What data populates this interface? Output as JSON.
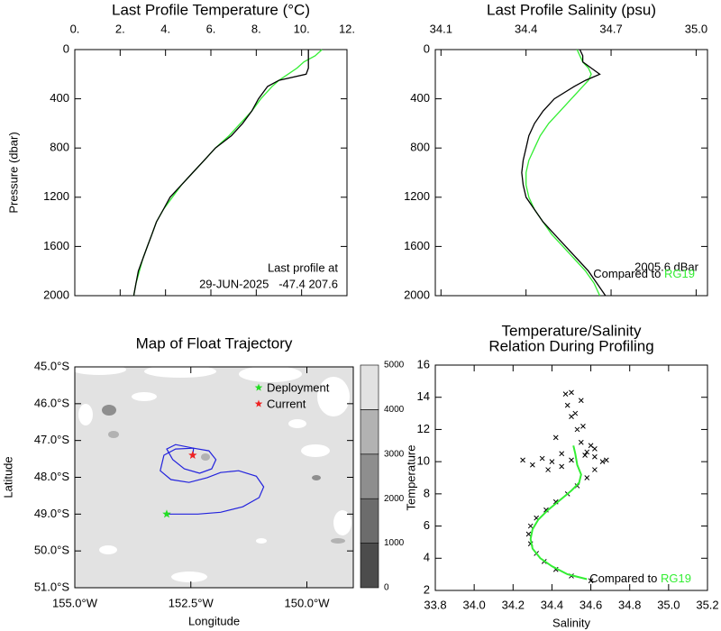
{
  "chart_data": [
    {
      "type": "profile",
      "title": "Last Profile Temperature (°C)",
      "ylabel": "Pressure (dbar)",
      "xlim": [
        0,
        12
      ],
      "xticks": [
        {
          "value": 0,
          "label": "0."
        },
        {
          "value": 2,
          "label": "2."
        },
        {
          "value": 4,
          "label": "4."
        },
        {
          "value": 6,
          "label": "6."
        },
        {
          "value": 8,
          "label": "8."
        },
        {
          "value": 10,
          "label": "10."
        },
        {
          "value": 12,
          "label": "12."
        }
      ],
      "ylim": [
        0,
        2000
      ],
      "yreverse": true,
      "yticks": [
        0,
        400,
        800,
        1200,
        1600,
        2000
      ],
      "y": [
        0,
        50,
        100,
        150,
        200,
        250,
        300,
        400,
        500,
        600,
        700,
        800,
        900,
        1000,
        1100,
        1200,
        1300,
        1400,
        1500,
        1600,
        1700,
        1800,
        1900,
        2000
      ],
      "series": [
        {
          "color": "#33ee33",
          "values": [
            10.9,
            10.6,
            10.1,
            9.8,
            9.4,
            9.0,
            8.7,
            8.2,
            7.8,
            7.3,
            6.8,
            6.2,
            5.7,
            5.2,
            4.7,
            4.3,
            3.9,
            3.6,
            3.4,
            3.2,
            3.0,
            2.85,
            2.7,
            2.6
          ]
        },
        {
          "color": "#000000",
          "values": [
            10.3,
            10.3,
            10.3,
            10.3,
            10.2,
            9.0,
            8.5,
            8.1,
            7.8,
            7.4,
            6.9,
            6.2,
            5.7,
            5.2,
            4.7,
            4.2,
            3.9,
            3.6,
            3.4,
            3.2,
            3.0,
            2.8,
            2.7,
            2.6
          ]
        }
      ],
      "annotation": [
        "Last profile at",
        "29-JUN-2025   -47.4 207.6"
      ]
    },
    {
      "type": "profile",
      "title": "Last Profile Salinity (psu)",
      "xlim": [
        34.08,
        35.04
      ],
      "xticks": [
        34.1,
        34.4,
        34.7,
        {
          "value": 35,
          "label": "35.0"
        }
      ],
      "ylim": [
        0,
        2000
      ],
      "yreverse": true,
      "yticks": [
        0,
        400,
        800,
        1200,
        1600,
        2000
      ],
      "y": [
        0,
        50,
        100,
        150,
        200,
        250,
        300,
        400,
        500,
        600,
        700,
        800,
        900,
        1000,
        1100,
        1200,
        1300,
        1400,
        1500,
        1600,
        1700,
        1800,
        1900,
        2000
      ],
      "series": [
        {
          "color": "#33ee33",
          "values": [
            34.58,
            34.59,
            34.6,
            34.62,
            34.63,
            34.62,
            34.6,
            34.56,
            34.52,
            34.48,
            34.45,
            34.43,
            34.41,
            34.4,
            34.4,
            34.41,
            34.43,
            34.46,
            34.49,
            34.53,
            34.57,
            34.61,
            34.64,
            34.66
          ]
        },
        {
          "color": "#000000",
          "values": [
            34.59,
            34.6,
            34.6,
            34.63,
            34.66,
            34.61,
            34.57,
            34.5,
            34.46,
            34.43,
            34.41,
            34.4,
            34.39,
            34.385,
            34.39,
            34.4,
            34.43,
            34.46,
            34.5,
            34.54,
            34.58,
            34.62,
            34.65,
            34.68
          ]
        }
      ],
      "annotation": [
        "2005.6 dBar"
      ],
      "compare": "Compared to",
      "reference": "RG19",
      "reference_color": "#33ee33"
    },
    {
      "type": "map",
      "title": "Map of Float Trajectory",
      "xlabel": "Longitude",
      "ylabel": "Latitude",
      "xlim": [
        -155,
        -149
      ],
      "xticks": [
        {
          "value": -155,
          "label": "155.0°W"
        },
        {
          "value": -152.5,
          "label": "152.5°W"
        },
        {
          "value": -150,
          "label": "150.0°W"
        }
      ],
      "ylim": [
        -51,
        -45
      ],
      "yticks": [
        {
          "value": -45,
          "label": "45.0°S"
        },
        {
          "value": -46,
          "label": "46.0°S"
        },
        {
          "value": -47,
          "label": "47.0°S"
        },
        {
          "value": -48,
          "label": "48.0°S"
        },
        {
          "value": -49,
          "label": "49.0°S"
        },
        {
          "value": -50,
          "label": "50.0°S"
        },
        {
          "value": -51,
          "label": "51.0°S"
        }
      ],
      "track": {
        "color": "#2222dd",
        "lon": [
          -153.02,
          -152.35,
          -151.86,
          -151.38,
          -151.03,
          -150.93,
          -151.09,
          -151.47,
          -151.86,
          -152.15,
          -152.54,
          -152.93,
          -153.16,
          -153.08,
          -152.83,
          -152.44,
          -152.11,
          -151.96,
          -152.05,
          -152.31,
          -152.64,
          -152.89,
          -153.02,
          -152.83,
          -152.44,
          -152.46
        ],
        "lat": [
          -49.0,
          -49.0,
          -48.95,
          -48.8,
          -48.55,
          -48.26,
          -47.97,
          -47.82,
          -47.87,
          -48.01,
          -48.14,
          -48.06,
          -47.82,
          -47.4,
          -47.23,
          -47.21,
          -47.28,
          -47.52,
          -47.77,
          -47.89,
          -47.77,
          -47.52,
          -47.23,
          -47.11,
          -47.21,
          -47.4
        ]
      },
      "markers": [
        {
          "name": "Deployment",
          "color": "#22dd22",
          "lon": -153.02,
          "lat": -49.0
        },
        {
          "name": "Current",
          "color": "#ee2222",
          "lon": -152.46,
          "lat": -47.4
        }
      ],
      "colorbar": {
        "levels": [
          0,
          1000,
          2000,
          3000,
          4000,
          5000
        ],
        "colors": [
          "#4c4c4c",
          "#6c6c6c",
          "#8e8e8e",
          "#b2b2b2",
          "#e2e2e2"
        ]
      }
    },
    {
      "type": "scatter",
      "title": [
        "Temperature/Salinity",
        "Relation During Profiling"
      ],
      "xlabel": "Salinity",
      "ylabel": "Temperature",
      "xlim": [
        33.8,
        35.2
      ],
      "xticks": [
        33.8,
        {
          "value": 34,
          "label": "34.0"
        },
        34.2,
        34.4,
        34.6,
        34.8,
        {
          "value": 35,
          "label": "35.0"
        },
        35.2
      ],
      "ylim": [
        2,
        16
      ],
      "yticks": [
        2,
        4,
        6,
        8,
        10,
        12,
        14,
        16
      ],
      "series": [
        {
          "color": "#000000",
          "marker": "x",
          "x": [
            34.6,
            34.5,
            34.42,
            34.36,
            34.32,
            34.29,
            34.28,
            34.29,
            34.32,
            34.37,
            34.42,
            34.48,
            34.53,
            34.58,
            34.62,
            34.66,
            34.62,
            34.58,
            34.55,
            34.53,
            34.5,
            34.48,
            34.47,
            34.52,
            34.56,
            34.6,
            34.45,
            34.4,
            34.35,
            34.3,
            34.25,
            34.5,
            34.55,
            34.42,
            34.38,
            34.62,
            34.57,
            34.68,
            34.5,
            34.45
          ],
          "values": [
            2.6,
            2.9,
            3.3,
            3.8,
            4.3,
            4.9,
            5.5,
            6.0,
            6.5,
            7.0,
            7.5,
            8.0,
            8.5,
            9.0,
            9.5,
            10.0,
            10.3,
            10.6,
            11.2,
            12.0,
            12.8,
            13.5,
            14.2,
            13.0,
            12.2,
            11.0,
            10.5,
            10.0,
            10.2,
            9.8,
            10.1,
            14.3,
            13.8,
            11.5,
            9.5,
            10.8,
            10.4,
            10.1,
            10.1,
            9.7
          ]
        },
        {
          "color": "#33ee33",
          "marker": "line",
          "x": [
            34.58,
            34.48,
            34.4,
            34.34,
            34.3,
            34.29,
            34.3,
            34.33,
            34.38,
            34.44,
            34.5,
            34.54,
            34.55,
            34.53,
            34.52,
            34.51
          ],
          "values": [
            2.7,
            3.0,
            3.5,
            4.0,
            4.6,
            5.2,
            5.8,
            6.4,
            7.0,
            7.6,
            8.2,
            8.7,
            9.2,
            9.8,
            10.5,
            11.0
          ]
        }
      ],
      "compare": "Compared to",
      "reference": "RG19",
      "reference_color": "#33ee33"
    }
  ]
}
